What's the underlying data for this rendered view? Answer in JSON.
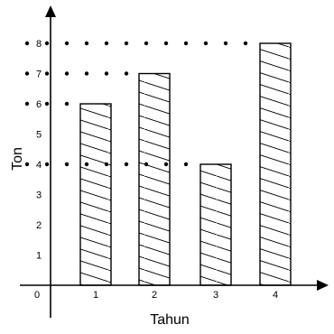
{
  "chart_data": {
    "type": "bar",
    "categories": [
      "1",
      "2",
      "3",
      "4"
    ],
    "values": [
      6,
      7,
      4,
      8
    ],
    "xlabel": "Tahun",
    "ylabel": "Ton",
    "origin_label": "0",
    "y_ticks": [
      "1",
      "2",
      "3",
      "4",
      "5",
      "6",
      "7",
      "8"
    ],
    "ylim": [
      0,
      8
    ],
    "grid": false,
    "bar_fill": "hatched",
    "dotted_reference_lines": [
      8,
      7,
      6,
      4
    ],
    "colors": {
      "stroke": "#000000",
      "background": "#ffffff"
    }
  }
}
